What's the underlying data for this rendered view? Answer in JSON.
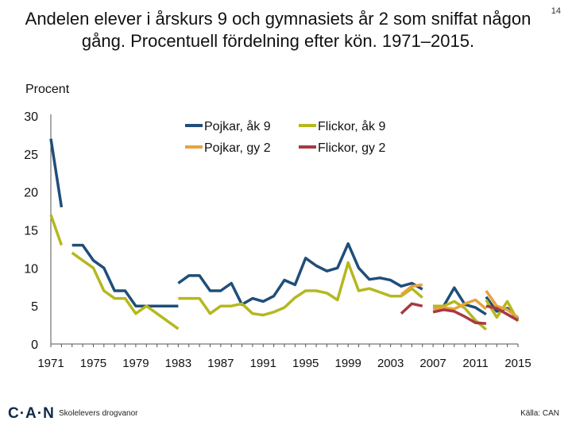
{
  "slide_number": "14",
  "footer": {
    "logo": "C·A·N",
    "left": "Skolelevers drogvanor",
    "right": "Källa: CAN"
  },
  "chart_data": {
    "type": "line",
    "title": "Andelen elever i årskurs 9 och gymnasiets år 2 som sniffat någon gång. Procentuell fördelning efter kön. 1971–2015.",
    "ylabel": "Procent",
    "xlabel": "",
    "xlim": [
      1971,
      2015
    ],
    "ylim": [
      0,
      30
    ],
    "yticks": [
      0,
      5,
      10,
      15,
      20,
      25,
      30
    ],
    "xticks": [
      1971,
      1975,
      1979,
      1983,
      1987,
      1991,
      1995,
      1999,
      2003,
      2007,
      2011,
      2015
    ],
    "legend_position": "top-center",
    "series": [
      {
        "name": "Pojkar, åk 9",
        "color": "#1f4e79",
        "segments": [
          [
            [
              1971,
              27
            ],
            [
              1972,
              18
            ]
          ],
          [
            [
              1973,
              13
            ],
            [
              1974,
              13
            ],
            [
              1975,
              11
            ],
            [
              1976,
              10
            ],
            [
              1977,
              7
            ],
            [
              1978,
              7
            ],
            [
              1979,
              5
            ],
            [
              1980,
              5
            ],
            [
              1981,
              5
            ],
            [
              1982,
              5
            ],
            [
              1983,
              5
            ]
          ],
          [
            [
              1983,
              8
            ],
            [
              1984,
              9
            ],
            [
              1985,
              9
            ],
            [
              1986,
              7
            ],
            [
              1987,
              7
            ],
            [
              1988,
              8
            ],
            [
              1989,
              5.2
            ],
            [
              1990,
              6
            ],
            [
              1991,
              5.6
            ],
            [
              1992,
              6.3
            ],
            [
              1993,
              8.4
            ],
            [
              1994,
              7.8
            ],
            [
              1995,
              11.3
            ],
            [
              1996,
              10.3
            ],
            [
              1997,
              9.6
            ],
            [
              1998,
              10
            ],
            [
              1999,
              13.2
            ],
            [
              2000,
              10
            ],
            [
              2001,
              8.5
            ],
            [
              2002,
              8.7
            ],
            [
              2003,
              8.4
            ],
            [
              2004,
              7.6
            ],
            [
              2005,
              8
            ],
            [
              2006,
              7.2
            ]
          ],
          [
            [
              2007,
              5
            ],
            [
              2008,
              5
            ],
            [
              2009,
              7.4
            ],
            [
              2010,
              5.2
            ],
            [
              2011,
              4.8
            ],
            [
              2012,
              3.9
            ]
          ],
          [
            [
              2012,
              6.2
            ],
            [
              2013,
              4.3
            ],
            [
              2014,
              4.7
            ],
            [
              2015,
              3.3
            ]
          ]
        ]
      },
      {
        "name": "Flickor, åk 9",
        "color": "#b5b81e",
        "segments": [
          [
            [
              1971,
              17
            ],
            [
              1972,
              13
            ]
          ],
          [
            [
              1973,
              12
            ],
            [
              1974,
              11
            ],
            [
              1975,
              10
            ],
            [
              1976,
              7
            ],
            [
              1977,
              6
            ],
            [
              1978,
              6
            ],
            [
              1979,
              4
            ],
            [
              1980,
              5
            ],
            [
              1981,
              4
            ],
            [
              1982,
              3
            ],
            [
              1983,
              2
            ]
          ],
          [
            [
              1983,
              6
            ],
            [
              1984,
              6
            ],
            [
              1985,
              6
            ],
            [
              1986,
              4
            ],
            [
              1987,
              5
            ],
            [
              1988,
              5
            ],
            [
              1989,
              5.3
            ],
            [
              1990,
              4
            ],
            [
              1991,
              3.8
            ],
            [
              1992,
              4.2
            ],
            [
              1993,
              4.8
            ],
            [
              1994,
              6.1
            ],
            [
              1995,
              7
            ],
            [
              1996,
              7
            ],
            [
              1997,
              6.7
            ],
            [
              1998,
              5.8
            ],
            [
              1999,
              10.7
            ],
            [
              2000,
              7
            ],
            [
              2001,
              7.3
            ],
            [
              2002,
              6.8
            ],
            [
              2003,
              6.3
            ],
            [
              2004,
              6.3
            ],
            [
              2005,
              7.3
            ],
            [
              2006,
              6.1
            ]
          ],
          [
            [
              2007,
              5
            ],
            [
              2008,
              5
            ],
            [
              2009,
              5.6
            ],
            [
              2010,
              4.7
            ],
            [
              2011,
              3.1
            ],
            [
              2012,
              1.9
            ]
          ],
          [
            [
              2012,
              5.8
            ],
            [
              2013,
              3.5
            ],
            [
              2014,
              5.6
            ],
            [
              2015,
              3
            ]
          ]
        ]
      },
      {
        "name": "Pojkar, gy 2",
        "color": "#e8a33d",
        "segments": [
          [
            [
              2004,
              6.5
            ],
            [
              2005,
              7.6
            ],
            [
              2006,
              7.8
            ]
          ],
          [
            [
              2007,
              4.6
            ],
            [
              2008,
              4.8
            ],
            [
              2009,
              4.6
            ],
            [
              2010,
              5.3
            ],
            [
              2011,
              5.8
            ],
            [
              2012,
              4.6
            ]
          ],
          [
            [
              2012,
              7
            ],
            [
              2013,
              5
            ],
            [
              2014,
              4.5
            ],
            [
              2015,
              3.5
            ]
          ]
        ]
      },
      {
        "name": "Flickor, gy 2",
        "color": "#a63a42",
        "segments": [
          [
            [
              2004,
              4
            ],
            [
              2005,
              5.3
            ],
            [
              2006,
              5
            ]
          ],
          [
            [
              2007,
              4.2
            ],
            [
              2008,
              4.5
            ],
            [
              2009,
              4.3
            ],
            [
              2010,
              3.6
            ],
            [
              2011,
              2.8
            ],
            [
              2012,
              2.7
            ]
          ],
          [
            [
              2012,
              5
            ],
            [
              2013,
              4.7
            ],
            [
              2014,
              3.9
            ],
            [
              2015,
              3.1
            ]
          ]
        ]
      }
    ]
  }
}
